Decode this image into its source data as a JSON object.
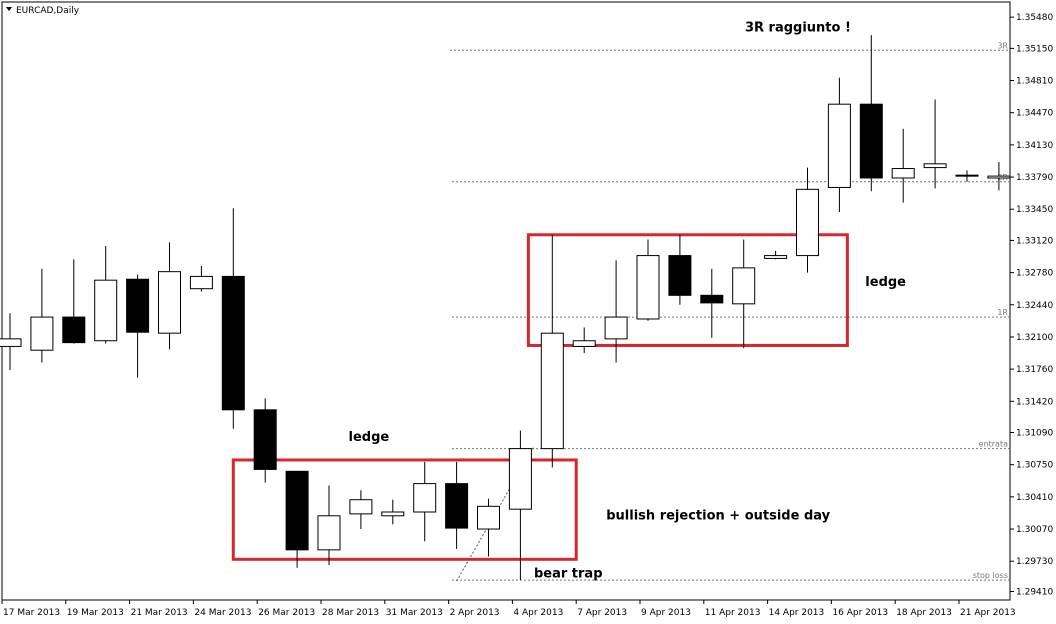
{
  "chart_data": {
    "type": "candlestick",
    "title": "EURCAD,Daily",
    "ylim": [
      1.2932,
      1.3564
    ],
    "y_ticks": [
      "1.35480",
      "1.35150",
      "1.34810",
      "1.34470",
      "1.34130",
      "1.33790",
      "1.33450",
      "1.33120",
      "1.32780",
      "1.32440",
      "1.32100",
      "1.31760",
      "1.31420",
      "1.31090",
      "1.30750",
      "1.30410",
      "1.30070",
      "1.29730",
      "1.29410"
    ],
    "x_labels": [
      {
        "i": 0,
        "label": "17 Mar 2013"
      },
      {
        "i": 2,
        "label": "19 Mar 2013"
      },
      {
        "i": 4,
        "label": "21 Mar 2013"
      },
      {
        "i": 6,
        "label": "24 Mar 2013"
      },
      {
        "i": 8,
        "label": "26 Mar 2013"
      },
      {
        "i": 10,
        "label": "28 Mar 2013"
      },
      {
        "i": 12,
        "label": "31 Mar 2013"
      },
      {
        "i": 14,
        "label": "2 Apr 2013"
      },
      {
        "i": 16,
        "label": "4 Apr 2013"
      },
      {
        "i": 18,
        "label": "7 Apr 2013"
      },
      {
        "i": 20,
        "label": "9 Apr 2013"
      },
      {
        "i": 22,
        "label": "11 Apr 2013"
      },
      {
        "i": 24,
        "label": "14 Apr 2013"
      },
      {
        "i": 26,
        "label": "16 Apr 2013"
      },
      {
        "i": 28,
        "label": "18 Apr 2013"
      },
      {
        "i": 30,
        "label": "21 Apr 2013"
      }
    ],
    "candles": [
      {
        "o": 1.32,
        "h": 1.3235,
        "l": 1.3175,
        "c": 1.3208
      },
      {
        "o": 1.3196,
        "h": 1.3282,
        "l": 1.3183,
        "c": 1.3231
      },
      {
        "o": 1.3231,
        "h": 1.3292,
        "l": 1.3203,
        "c": 1.3204
      },
      {
        "o": 1.3206,
        "h": 1.3306,
        "l": 1.3203,
        "c": 1.327
      },
      {
        "o": 1.3271,
        "h": 1.3276,
        "l": 1.3167,
        "c": 1.3215
      },
      {
        "o": 1.3214,
        "h": 1.331,
        "l": 1.3197,
        "c": 1.3279
      },
      {
        "o": 1.3261,
        "h": 1.3285,
        "l": 1.3258,
        "c": 1.3274
      },
      {
        "o": 1.3274,
        "h": 1.3346,
        "l": 1.3113,
        "c": 1.3133
      },
      {
        "o": 1.3133,
        "h": 1.3145,
        "l": 1.3056,
        "c": 1.307
      },
      {
        "o": 1.3068,
        "h": 1.3068,
        "l": 1.2966,
        "c": 1.2985
      },
      {
        "o": 1.2985,
        "h": 1.3053,
        "l": 1.2969,
        "c": 1.3021
      },
      {
        "o": 1.3023,
        "h": 1.3048,
        "l": 1.3007,
        "c": 1.3038
      },
      {
        "o": 1.3021,
        "h": 1.3038,
        "l": 1.3012,
        "c": 1.3025
      },
      {
        "o": 1.3025,
        "h": 1.3078,
        "l": 1.2994,
        "c": 1.3055
      },
      {
        "o": 1.3055,
        "h": 1.3078,
        "l": 1.2986,
        "c": 1.3008
      },
      {
        "o": 1.3007,
        "h": 1.3039,
        "l": 1.2978,
        "c": 1.3031
      },
      {
        "o": 1.3028,
        "h": 1.3111,
        "l": 1.2953,
        "c": 1.3092
      },
      {
        "o": 1.3092,
        "h": 1.3318,
        "l": 1.3072,
        "c": 1.3214
      },
      {
        "o": 1.32,
        "h": 1.322,
        "l": 1.3193,
        "c": 1.3206
      },
      {
        "o": 1.3208,
        "h": 1.3291,
        "l": 1.3183,
        "c": 1.3231
      },
      {
        "o": 1.3229,
        "h": 1.3313,
        "l": 1.3227,
        "c": 1.3296
      },
      {
        "o": 1.3296,
        "h": 1.3318,
        "l": 1.3244,
        "c": 1.3254
      },
      {
        "o": 1.3254,
        "h": 1.3282,
        "l": 1.3209,
        "c": 1.3246
      },
      {
        "o": 1.3245,
        "h": 1.3313,
        "l": 1.3198,
        "c": 1.3283
      },
      {
        "o": 1.3293,
        "h": 1.3301,
        "l": 1.3292,
        "c": 1.3296
      },
      {
        "o": 1.3296,
        "h": 1.3389,
        "l": 1.3278,
        "c": 1.3366
      },
      {
        "o": 1.3368,
        "h": 1.3484,
        "l": 1.3342,
        "c": 1.3456
      },
      {
        "o": 1.3456,
        "h": 1.3529,
        "l": 1.3364,
        "c": 1.3378
      },
      {
        "o": 1.3378,
        "h": 1.343,
        "l": 1.3352,
        "c": 1.3388
      },
      {
        "o": 1.3389,
        "h": 1.3461,
        "l": 1.3367,
        "c": 1.3393
      },
      {
        "o": 1.3381,
        "h": 1.3386,
        "l": 1.3374,
        "c": 1.3381
      },
      {
        "o": 1.3378,
        "h": 1.3395,
        "l": 1.3365,
        "c": 1.338
      }
    ],
    "levels": [
      {
        "label": "3R",
        "y": 1.3513
      },
      {
        "label": "2R",
        "y": 1.3374
      },
      {
        "label": "1R",
        "y": 1.3231
      },
      {
        "label": "entrata",
        "y": 1.3092
      },
      {
        "label": "stop loss",
        "y": 1.2953
      }
    ],
    "boxes": [
      {
        "name": "lower-ledge-box",
        "x0": 7.0,
        "x1": 17.75,
        "y_top": 1.308,
        "y_bottom": 1.2975
      },
      {
        "name": "upper-ledge-box",
        "x0": 16.25,
        "x1": 26.25,
        "y_top": 1.3318,
        "y_bottom": 1.3201
      }
    ],
    "trend_line": {
      "from": {
        "x": 14.0,
        "y": 1.2952
      },
      "to": {
        "x": 16.4,
        "y": 1.3093
      }
    },
    "annotations": [
      {
        "text": "3R raggiunto !",
        "x": 24.7,
        "y": 1.3533
      },
      {
        "text": "ledge",
        "x": 11.25,
        "y": 1.31
      },
      {
        "text": "ledge",
        "x": 27.45,
        "y": 1.3264
      },
      {
        "text": "bullish rejection + outside day",
        "x": 22.2,
        "y": 1.3017
      },
      {
        "text": "bear trap",
        "x": 17.5,
        "y": 1.2956
      }
    ]
  }
}
